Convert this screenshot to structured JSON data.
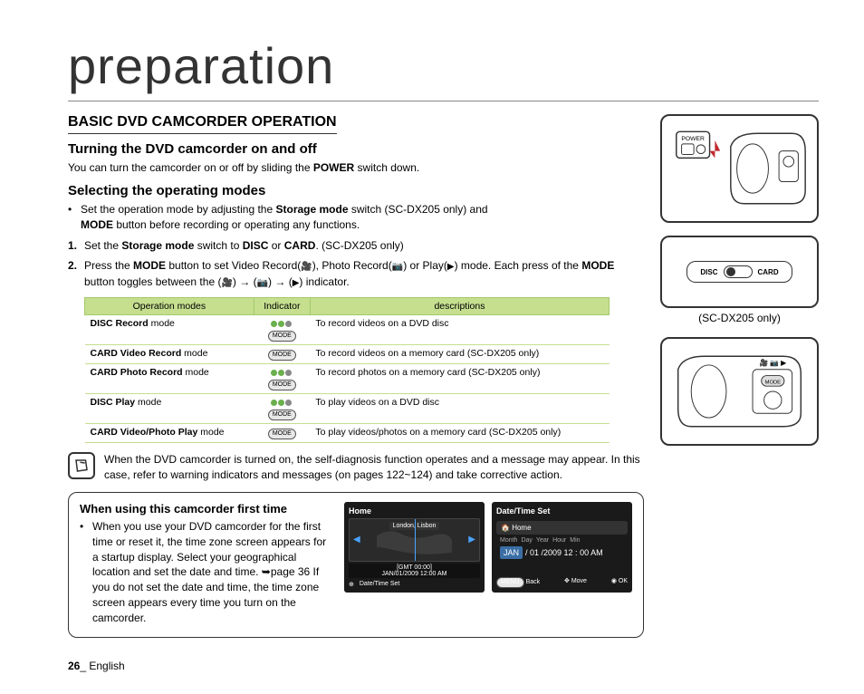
{
  "page_title": "preparation",
  "section_heading": "BASIC DVD CAMCORDER OPERATION",
  "sub1_heading": "Turning the DVD camcorder on and off",
  "sub1_body_pre": "You can turn the camcorder on or off by sliding the ",
  "sub1_body_bold": "POWER",
  "sub1_body_post": " switch down.",
  "sub2_heading": "Selecting the operating modes",
  "bullet1_pre": "Set the operation mode by adjusting the ",
  "bullet1_b1": "Storage mode",
  "bullet1_mid": " switch (SC-DX205 only) and ",
  "bullet1_b2": "MODE",
  "bullet1_post": " button before recording or operating any functions.",
  "step1_pre": "Set the ",
  "step1_b1": "Storage mode",
  "step1_mid": " switch to ",
  "step1_b2": "DISC",
  "step1_or": " or ",
  "step1_b3": "CARD",
  "step1_post": ". (SC-DX205 only)",
  "step2_pre": "Press the ",
  "step2_b1": "MODE",
  "step2_mid1": " button to set Video Record(",
  "step2_mid2": "), Photo Record(",
  "step2_mid3": ") or Play(",
  "step2_mid4": ") mode. Each press of the ",
  "step2_b2": "MODE",
  "step2_mid5": " button toggles between the (",
  "step2_arrow": ") → (",
  "step2_end": ") indicator.",
  "table": {
    "headers": [
      "Operation modes",
      "Indicator",
      "descriptions"
    ],
    "rows": [
      {
        "mode_b": "DISC Record",
        "mode_t": " mode",
        "ind": "dots3-mode",
        "desc": "To record videos on a DVD disc"
      },
      {
        "mode_b": "CARD Video Record",
        "mode_t": " mode",
        "ind": "mode",
        "desc": "To record videos on a memory card (SC-DX205 only)"
      },
      {
        "mode_b": "CARD Photo Record",
        "mode_t": " mode",
        "ind": "dots3-mode",
        "desc": "To record photos on a memory card (SC-DX205 only)"
      },
      {
        "mode_b": "DISC Play",
        "mode_t": " mode",
        "ind": "dots3-mode",
        "desc": "To play videos on a DVD disc"
      },
      {
        "mode_b": "CARD Video/Photo Play",
        "mode_t": " mode",
        "ind": "mode",
        "desc": "To play videos/photos on a memory card (SC-DX205 only)"
      }
    ]
  },
  "note_text": "When the DVD camcorder is turned on, the self-diagnosis function operates and a message may appear. In this case, refer to warning indicators and messages (on pages 122~124) and take corrective action.",
  "first_time": {
    "title": "When using this camcorder first time",
    "body": "When you use your DVD camcorder for the first time or reset it, the time zone screen appears for a startup display. Select your geographical location and set the date and time. ➥page 36 If you do not set the date and time, the time zone screen appears every time you turn on the camcorder."
  },
  "screen1": {
    "title": "Home",
    "location": "London, Lisbon",
    "gmt": "[GMT 00:00]",
    "date": "JAN/01/2009 12:00 AM",
    "footer_icon": "⊕",
    "footer": "Date/Time Set"
  },
  "screen2": {
    "title": "Date/Time Set",
    "home": "Home",
    "labels": [
      "Month",
      "Day",
      "Year",
      "Hour",
      "Min"
    ],
    "selected": "JAN",
    "sep1": "/ 01 /2009  12 : 00 AM",
    "foot_back": "Back",
    "foot_move": "Move",
    "foot_ok": "OK",
    "menu_badge": "MENU"
  },
  "diagram2_caption": "(SC-DX205 only)",
  "disc_label": "DISC",
  "card_label": "CARD",
  "power_label": "POWER",
  "mode_label": "MODE",
  "page_number": "26",
  "page_lang": "_ English"
}
